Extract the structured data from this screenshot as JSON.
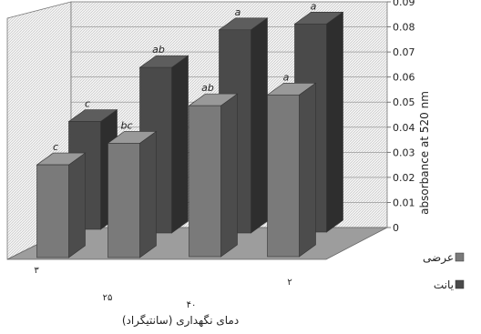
{
  "chart_data": {
    "type": "bar",
    "projection": "3d",
    "title": "",
    "xlabel": "دمای نگهداری (سانتیگراد)",
    "ylabel": "absorbance at 520 nm",
    "ylim": [
      0,
      0.09
    ],
    "yticks": [
      "0",
      "0.01",
      "0.02",
      "0.03",
      "0.04",
      "0.05",
      "0.06",
      "0.07",
      "0.08",
      "0.09"
    ],
    "categories": [
      "۳",
      "۲۵",
      "۴۰",
      "۲"
    ],
    "grid": true,
    "legend_position": "right",
    "series": [
      {
        "name": "عرضی",
        "color": "#7a7a7a",
        "values": [
          0.043,
          0.053,
          0.07,
          0.075
        ],
        "labels": [
          "c",
          "bc",
          "ab",
          "a"
        ]
      },
      {
        "name": "یانت",
        "color": "#4a4a4a",
        "values": [
          0.043,
          0.066,
          0.081,
          0.083
        ],
        "labels": [
          "c",
          "ab",
          "a",
          "a"
        ]
      }
    ]
  }
}
